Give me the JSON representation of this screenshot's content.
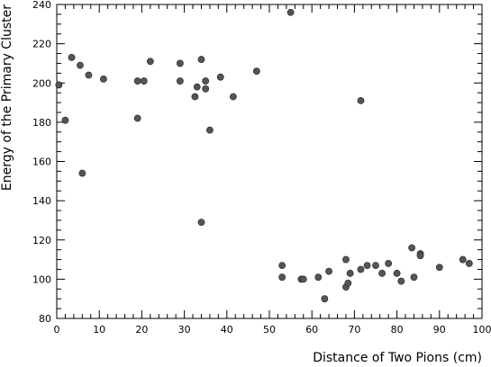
{
  "chart_data": {
    "type": "scatter",
    "xlabel": "Distance of Two Pions (cm)",
    "ylabel": "Energy of the Primary Cluster",
    "xlim": [
      0,
      100
    ],
    "ylim": [
      80,
      240
    ],
    "x_ticks": [
      0,
      10,
      20,
      30,
      40,
      50,
      60,
      70,
      80,
      90,
      100
    ],
    "y_ticks": [
      80,
      100,
      120,
      140,
      160,
      180,
      200,
      220,
      240
    ],
    "grid": false,
    "marker_color": "#555555",
    "series": [
      {
        "points": [
          [
            0.5,
            199
          ],
          [
            2,
            181
          ],
          [
            3.5,
            213
          ],
          [
            5.5,
            209
          ],
          [
            6,
            154
          ],
          [
            7.5,
            204
          ],
          [
            11,
            202
          ],
          [
            19,
            182
          ],
          [
            19,
            201
          ],
          [
            20.5,
            201
          ],
          [
            22,
            211
          ],
          [
            29,
            210
          ],
          [
            29,
            201
          ],
          [
            32.5,
            193
          ],
          [
            33,
            198
          ],
          [
            34,
            212
          ],
          [
            35,
            201
          ],
          [
            35,
            197
          ],
          [
            36,
            176
          ],
          [
            38.5,
            203
          ],
          [
            41.5,
            193
          ],
          [
            47,
            206
          ],
          [
            34,
            129
          ],
          [
            55,
            236
          ],
          [
            71.5,
            191
          ],
          [
            53,
            107
          ],
          [
            53,
            101
          ],
          [
            57.5,
            100
          ],
          [
            58,
            100
          ],
          [
            61.5,
            101
          ],
          [
            63,
            90
          ],
          [
            64,
            104
          ],
          [
            68,
            110
          ],
          [
            68,
            96
          ],
          [
            68.5,
            98
          ],
          [
            69,
            103
          ],
          [
            71.5,
            105
          ],
          [
            73,
            107
          ],
          [
            75,
            107
          ],
          [
            76.5,
            103
          ],
          [
            78,
            108
          ],
          [
            80,
            103
          ],
          [
            81,
            99
          ],
          [
            83.5,
            116
          ],
          [
            84,
            101
          ],
          [
            85.5,
            113
          ],
          [
            85.5,
            112
          ],
          [
            90,
            106
          ],
          [
            95.5,
            110
          ],
          [
            97,
            108
          ]
        ]
      }
    ]
  }
}
